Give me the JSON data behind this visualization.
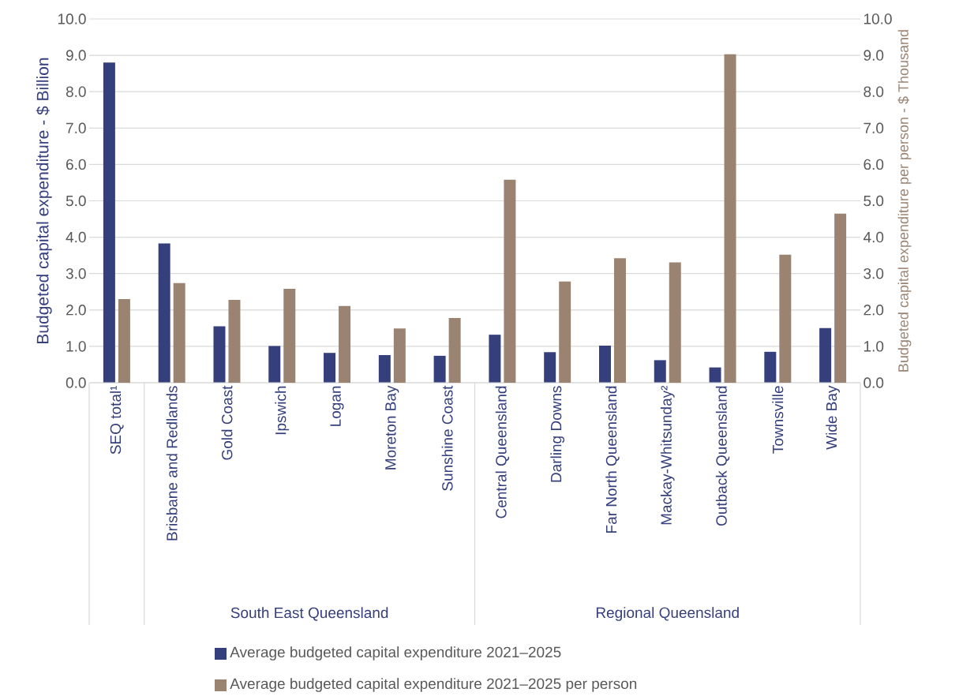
{
  "chart_data": {
    "type": "bar",
    "categories": [
      "SEQ total¹",
      "Brisbane and Redlands",
      "Gold Coast",
      "Ipswich",
      "Logan",
      "Moreton Bay",
      "Sunshine Coast",
      "Central Queensland",
      "Darling Downs",
      "Far North Queensland",
      "Mackay-Whitsunday²",
      "Outback Queensland",
      "Townsville",
      "Wide Bay"
    ],
    "series": [
      {
        "name": "Average budgeted capital expenditure 2021–2025",
        "color": "#353f7c",
        "values": [
          8.8,
          3.83,
          1.55,
          1.01,
          0.82,
          0.76,
          0.74,
          1.32,
          0.84,
          1.02,
          0.62,
          0.42,
          0.85,
          1.5
        ]
      },
      {
        "name": "Average budgeted capital expenditure 2021–2025 per person",
        "color": "#9b8372",
        "axis": "y2",
        "values": [
          2.3,
          2.74,
          2.28,
          2.58,
          2.11,
          1.49,
          1.78,
          5.58,
          2.78,
          3.42,
          3.31,
          9.03,
          3.52,
          4.65
        ]
      }
    ],
    "ylabel": "Budgeted capital expenditure - $ Billion",
    "y2label": "Budgeted capital expenditure per person - $ Thousand",
    "ylim": [
      0,
      10
    ],
    "yticks": [
      {
        "value": 0,
        "label": "0.0"
      },
      {
        "value": 1,
        "label": "1.0"
      },
      {
        "value": 2,
        "label": "2.0"
      },
      {
        "value": 3,
        "label": "3.0"
      },
      {
        "value": 4,
        "label": "4.0"
      },
      {
        "value": 5,
        "label": "5.0"
      },
      {
        "value": 6,
        "label": "6.0"
      },
      {
        "value": 7,
        "label": "7.0"
      },
      {
        "value": 8,
        "label": "8.0"
      },
      {
        "value": 9,
        "label": "9.0"
      },
      {
        "value": 10,
        "label": "10.0"
      }
    ],
    "y2lim": [
      0,
      10
    ],
    "y2ticks": [
      {
        "value": 0,
        "label": "0.0"
      },
      {
        "value": 1,
        "label": "1.0"
      },
      {
        "value": 2,
        "label": "2.0"
      },
      {
        "value": 3,
        "label": "3.0"
      },
      {
        "value": 4,
        "label": "4.0"
      },
      {
        "value": 5,
        "label": "5.0"
      },
      {
        "value": 6,
        "label": "6.0"
      },
      {
        "value": 7,
        "label": "7.0"
      },
      {
        "value": 8,
        "label": "8.0"
      },
      {
        "value": 9,
        "label": "9.0"
      },
      {
        "value": 10,
        "label": "10.0"
      }
    ],
    "annotations": [
      "South East Queensland",
      "Regional Queensland"
    ],
    "grid": "y",
    "legend": "bottom"
  }
}
